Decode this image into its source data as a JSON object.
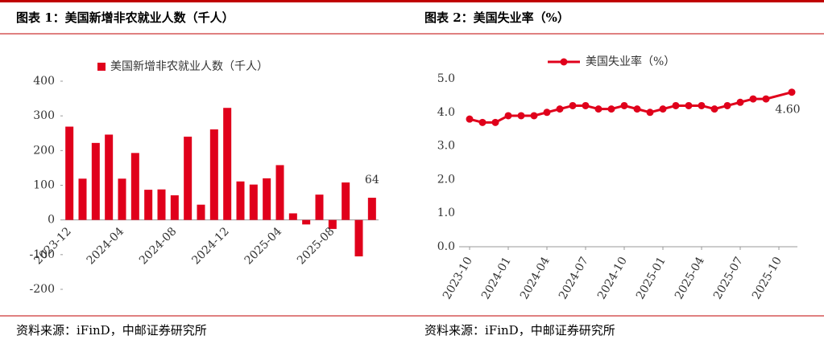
{
  "chart_data": [
    {
      "type": "bar",
      "title": "图表 1：美国新增非农就业人数（千人）",
      "source": "资料来源：iFinD，中邮证券研究所",
      "categories": [
        "2023-12",
        null,
        null,
        null,
        "2024-04",
        null,
        null,
        null,
        "2024-08",
        null,
        null,
        null,
        "2024-12",
        null,
        null,
        null,
        "2025-04",
        null,
        null,
        null,
        "2025-08",
        null,
        null,
        null
      ],
      "series": [
        {
          "name": "美国新增非农就业人数（千人）",
          "color": "#e0001b",
          "values": [
            269,
            119,
            222,
            246,
            119,
            193,
            87,
            88,
            71,
            240,
            44,
            261,
            323,
            111,
            102,
            120,
            158,
            19,
            -13,
            73,
            -26,
            108,
            -105,
            64
          ],
          "value_labels": [
            null,
            null,
            null,
            null,
            null,
            null,
            null,
            null,
            null,
            null,
            null,
            null,
            null,
            null,
            null,
            null,
            null,
            null,
            null,
            null,
            null,
            null,
            null,
            "64"
          ]
        }
      ],
      "ylim": [
        -200,
        400
      ],
      "yticks": [
        -200,
        -100,
        0,
        100,
        200,
        300,
        400
      ],
      "legend": "top"
    },
    {
      "type": "line",
      "title": "图表 2：美国失业率（%）",
      "source": "资料来源：iFinD，中邮证券研究所",
      "x": [
        "2023-10",
        "2023-11",
        "2023-12",
        "2024-01",
        "2024-02",
        "2024-03",
        "2024-04",
        "2024-05",
        "2024-06",
        "2024-07",
        "2024-08",
        "2024-09",
        "2024-10",
        "2024-11",
        "2024-12",
        "2025-01",
        "2025-02",
        "2025-03",
        "2025-04",
        "2025-05",
        "2025-06",
        "2025-07",
        "2025-08",
        "2025-09",
        "2025-11"
      ],
      "xticks": [
        "2023-10",
        "2024-01",
        "2024-04",
        "2024-07",
        "2024-10",
        "2025-01",
        "2025-04",
        "2025-07",
        "2025-10"
      ],
      "series": [
        {
          "name": "美国失业率（%）",
          "color": "#e0001b",
          "values": [
            3.8,
            3.7,
            3.7,
            3.9,
            3.9,
            3.9,
            4.0,
            4.1,
            4.2,
            4.2,
            4.1,
            4.1,
            4.2,
            4.1,
            4.0,
            4.1,
            4.2,
            4.2,
            4.2,
            4.1,
            4.2,
            4.3,
            4.4,
            4.4,
            4.6
          ],
          "value_labels": [
            null,
            null,
            null,
            null,
            null,
            null,
            null,
            null,
            null,
            null,
            null,
            null,
            null,
            null,
            null,
            null,
            null,
            null,
            null,
            null,
            null,
            null,
            null,
            null,
            "4.60"
          ]
        }
      ],
      "ylim": [
        0,
        5
      ],
      "yticks": [
        {
          "value": 0,
          "label": "0.0"
        },
        {
          "value": 1,
          "label": "1.0"
        },
        {
          "value": 2,
          "label": "2.0"
        },
        {
          "value": 3,
          "label": "3.0"
        },
        {
          "value": 4,
          "label": "4.0"
        },
        {
          "value": 5,
          "label": "5.0"
        }
      ],
      "legend": "top"
    }
  ]
}
